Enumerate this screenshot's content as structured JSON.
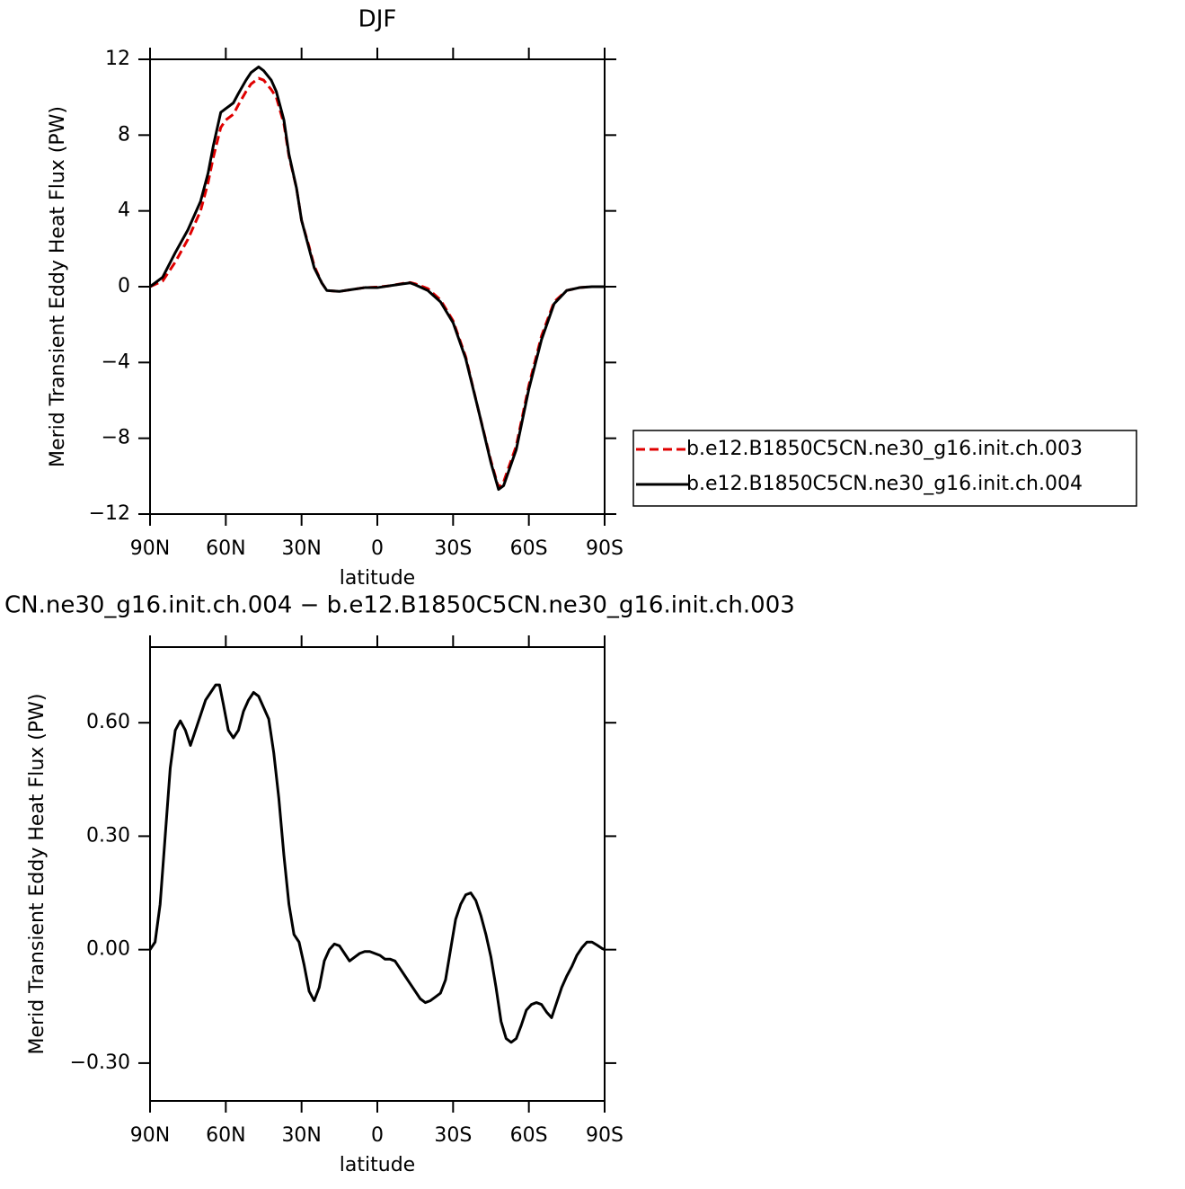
{
  "chart_data": [
    {
      "type": "line",
      "title": "DJF",
      "xlabel": "latitude",
      "ylabel": "Merid Transient Eddy Heat Flux (PW)",
      "xlim": [
        90,
        -90
      ],
      "ylim": [
        -12,
        12
      ],
      "xticks": [
        {
          "value": 90,
          "label": "90N"
        },
        {
          "value": 60,
          "label": "60N"
        },
        {
          "value": 30,
          "label": "30N"
        },
        0,
        {
          "value": -30,
          "label": "30S"
        },
        {
          "value": -60,
          "label": "60S"
        },
        {
          "value": -90,
          "label": "90S"
        }
      ],
      "yticks": [
        {
          "value": -12,
          "label": "−12"
        },
        {
          "value": -8,
          "label": "−8"
        },
        {
          "value": -4,
          "label": "−4"
        },
        0,
        4,
        8,
        12
      ],
      "x": [
        90,
        85,
        80,
        75,
        70,
        67,
        65,
        62,
        60,
        57,
        55,
        52,
        50,
        47,
        45,
        42,
        40,
        37,
        35,
        32,
        30,
        27,
        25,
        22,
        20,
        15,
        10,
        5,
        0,
        -5,
        -10,
        -13,
        -15,
        -20,
        -25,
        -30,
        -35,
        -40,
        -45,
        -48,
        -50,
        -55,
        -60,
        -65,
        -70,
        -75,
        -80,
        -85,
        -90
      ],
      "series": [
        {
          "name": "b.e12.B1850C5CN.ne30_g16.init.ch.003",
          "color": "#e00000",
          "dashed": true,
          "values": [
            0,
            0.3,
            1.3,
            2.5,
            4.0,
            5.5,
            6.8,
            8.4,
            8.8,
            9.1,
            9.6,
            10.3,
            10.7,
            11.0,
            10.9,
            10.4,
            10.0,
            8.6,
            6.9,
            5.2,
            3.5,
            2.1,
            1.1,
            0.2,
            -0.2,
            -0.25,
            -0.15,
            -0.05,
            -0.02,
            0.05,
            0.17,
            0.22,
            0.15,
            -0.1,
            -0.7,
            -1.8,
            -3.7,
            -6.5,
            -9.2,
            -10.6,
            -10.3,
            -8.4,
            -5.2,
            -2.6,
            -0.8,
            -0.2,
            -0.05,
            0,
            0
          ]
        },
        {
          "name": "b.e12.B1850C5CN.ne30_g16.init.ch.004",
          "color": "#000000",
          "dashed": false,
          "values": [
            0,
            0.5,
            1.8,
            3.0,
            4.5,
            6,
            7.4,
            9.2,
            9.4,
            9.7,
            10.2,
            10.9,
            11.3,
            11.6,
            11.4,
            10.9,
            10.3,
            8.8,
            7.0,
            5.2,
            3.5,
            2.0,
            1.0,
            0.2,
            -0.2,
            -0.25,
            -0.15,
            -0.05,
            -0.05,
            0.05,
            0.15,
            0.2,
            0.1,
            -0.2,
            -0.8,
            -1.9,
            -3.8,
            -6.5,
            -9.3,
            -10.7,
            -10.5,
            -8.6,
            -5.4,
            -2.8,
            -0.9,
            -0.2,
            -0.05,
            0,
            0
          ]
        }
      ]
    },
    {
      "type": "line",
      "title": "CN.ne30_g16.init.ch.004 − b.e12.B1850C5CN.ne30_g16.init.ch.003",
      "xlabel": "latitude",
      "ylabel": "Merid Transient Eddy Heat Flux (PW)",
      "xlim": [
        90,
        -90
      ],
      "ylim": [
        -0.4,
        0.8
      ],
      "xticks": [
        {
          "value": 90,
          "label": "90N"
        },
        {
          "value": 60,
          "label": "60N"
        },
        {
          "value": 30,
          "label": "30N"
        },
        0,
        {
          "value": -30,
          "label": "30S"
        },
        {
          "value": -60,
          "label": "60S"
        },
        {
          "value": -90,
          "label": "90S"
        }
      ],
      "yticks": [
        {
          "value": -0.3,
          "label": "−0.30"
        },
        {
          "value": 0,
          "label": "0.00"
        },
        {
          "value": 0.3,
          "label": "0.30"
        },
        {
          "value": 0.6,
          "label": "0.60"
        }
      ],
      "x": [
        90,
        88,
        86,
        84,
        82,
        80,
        78,
        76,
        74,
        72,
        70,
        68,
        66,
        64,
        62.5,
        61,
        59,
        57,
        55,
        53,
        51,
        49,
        47,
        45,
        43,
        41,
        39,
        37,
        35,
        33,
        31,
        29,
        27,
        25,
        23,
        21,
        19,
        17,
        15,
        13,
        11,
        9,
        7,
        5,
        3,
        1,
        -1,
        -3,
        -5,
        -7,
        -9,
        -11,
        -13,
        -15,
        -17,
        -19,
        -21,
        -23,
        -25,
        -27,
        -29,
        -31,
        -33,
        -35,
        -37,
        -39,
        -41,
        -43,
        -45,
        -47,
        -49,
        -51,
        -53,
        -55,
        -57,
        -59,
        -61,
        -63,
        -65,
        -67,
        -69,
        -71,
        -73,
        -75,
        -77,
        -79,
        -81,
        -83,
        -85,
        -87,
        -89,
        -90
      ],
      "series": [
        {
          "color": "#000000",
          "dashed": false,
          "values": [
            0,
            0.02,
            0.12,
            0.3,
            0.48,
            0.58,
            0.605,
            0.58,
            0.54,
            0.58,
            0.62,
            0.66,
            0.68,
            0.7,
            0.7,
            0.65,
            0.58,
            0.56,
            0.58,
            0.63,
            0.66,
            0.68,
            0.67,
            0.64,
            0.61,
            0.52,
            0.4,
            0.25,
            0.12,
            0.04,
            0.02,
            -0.04,
            -0.11,
            -0.135,
            -0.1,
            -0.03,
            0,
            0.015,
            0.01,
            -0.01,
            -0.03,
            -0.02,
            -0.01,
            -0.005,
            -0.005,
            -0.01,
            -0.015,
            -0.025,
            -0.025,
            -0.03,
            -0.05,
            -0.07,
            -0.09,
            -0.11,
            -0.13,
            -0.14,
            -0.135,
            -0.125,
            -0.115,
            -0.08,
            0,
            0.08,
            0.12,
            0.145,
            0.15,
            0.13,
            0.09,
            0.04,
            -0.02,
            -0.1,
            -0.19,
            -0.235,
            -0.245,
            -0.235,
            -0.2,
            -0.16,
            -0.145,
            -0.14,
            -0.145,
            -0.165,
            -0.18,
            -0.14,
            -0.1,
            -0.07,
            -0.045,
            -0.015,
            0.005,
            0.02,
            0.02,
            0.012,
            0.003,
            0
          ]
        }
      ]
    }
  ]
}
